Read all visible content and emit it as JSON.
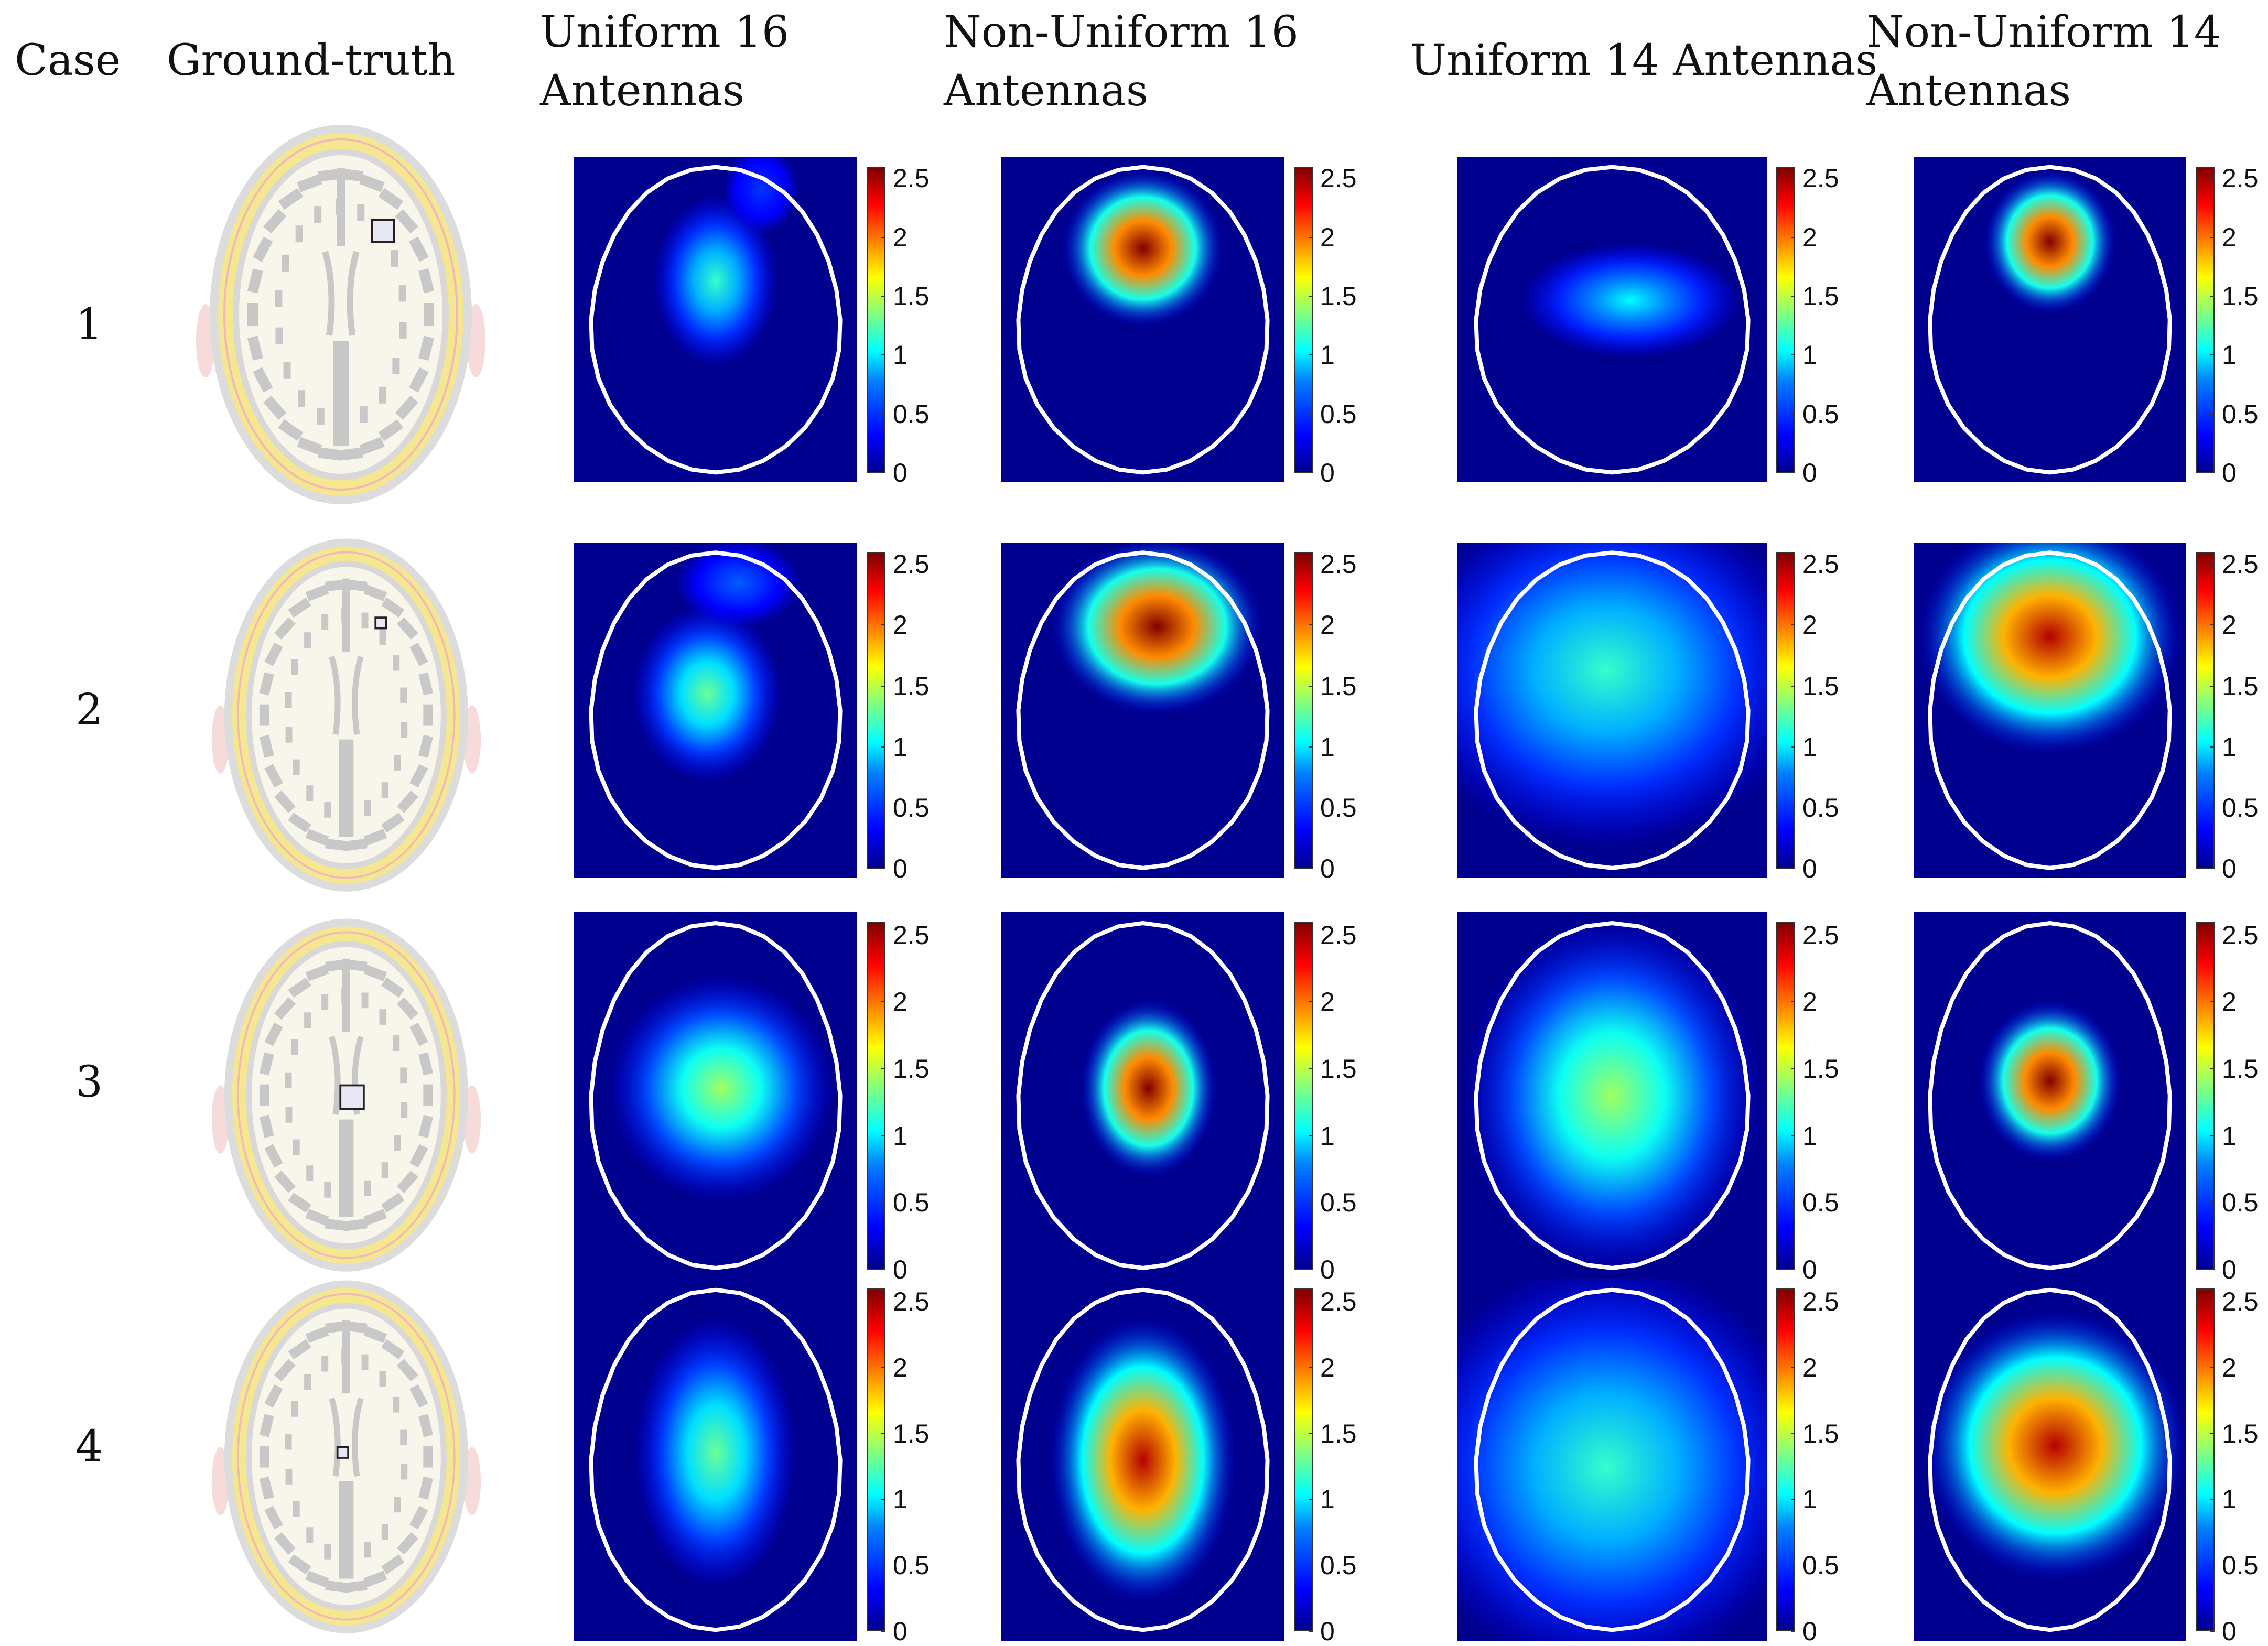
{
  "headers": {
    "case": "Case",
    "ground_truth": "Ground-truth",
    "uniform16": "Uniform 16\nAntennas",
    "nonuniform16": "Non-Uniform 16\nAntennas",
    "uniform14": "Uniform 14 Antennas",
    "nonuniform14": "Non-Uniform 14\nAntennas"
  },
  "cases": [
    "1",
    "2",
    "3",
    "4"
  ],
  "colorbar_ticks": [
    "0",
    "0.5",
    "1",
    "1.5",
    "2",
    "2.5"
  ],
  "colors": {
    "background": "#00008f",
    "outline": "#ffffff",
    "brain_gray": "#c8c8c8",
    "brain_fill": "#f8f6ea",
    "skull_yellow": "#f5e690",
    "skin_pink": "#f0b8b8"
  },
  "colorbar_range": [
    0,
    2.6
  ]
}
